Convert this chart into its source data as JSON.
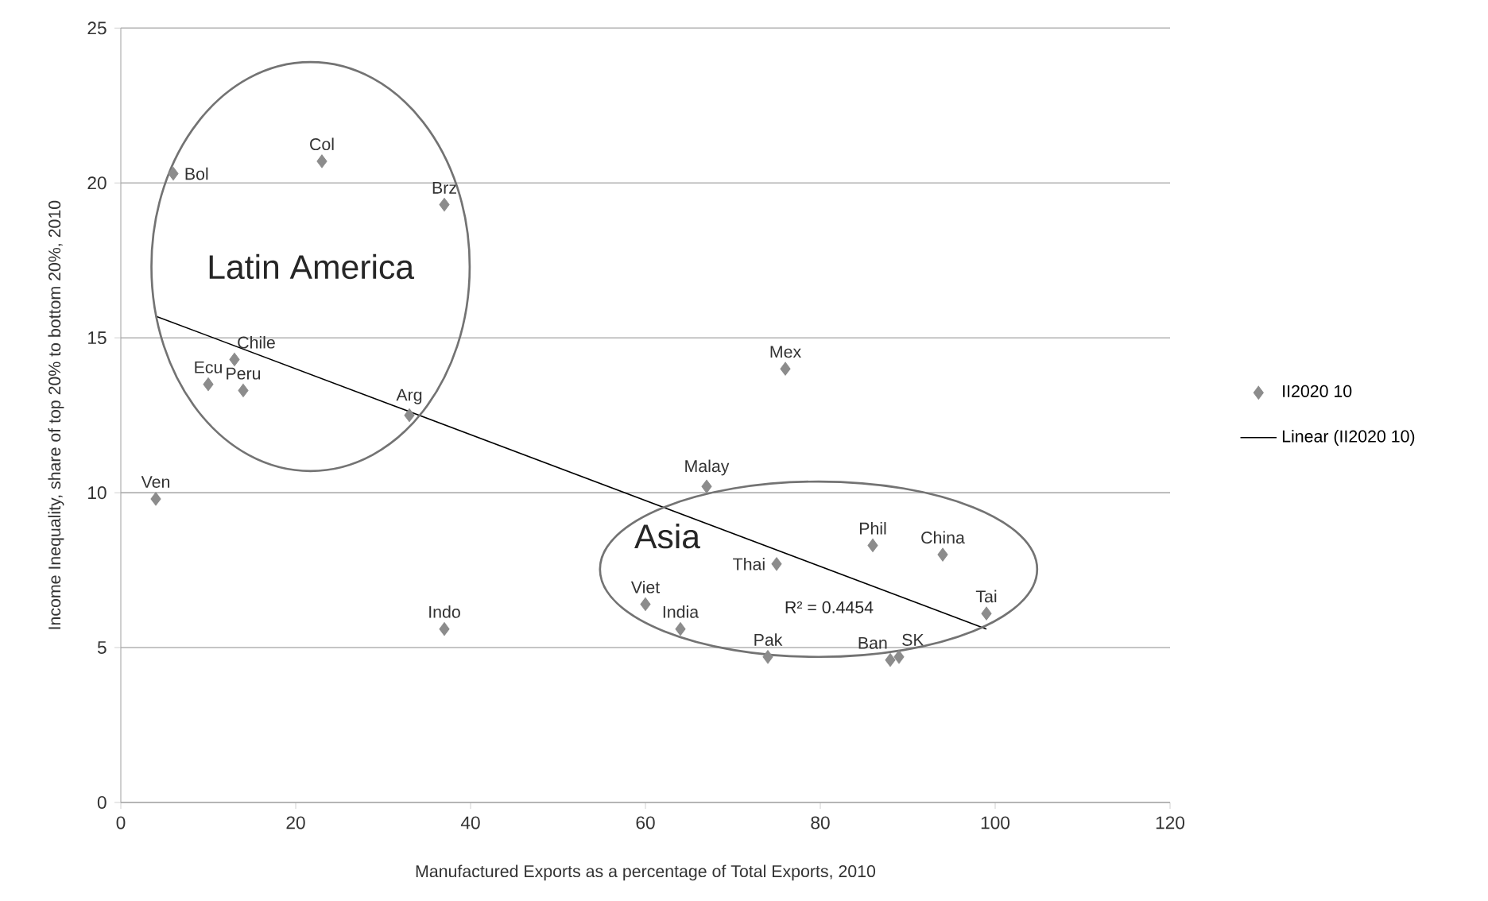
{
  "chart_data": {
    "type": "scatter",
    "xlabel": "Manufactured Exports as a percentage of Total Exports, 2010",
    "ylabel": "Income Inequality, share of top 20% to bottom 20%, 2010",
    "xlim": [
      0,
      120
    ],
    "ylim": [
      0,
      25
    ],
    "xticks": [
      0,
      20,
      40,
      60,
      80,
      100,
      120
    ],
    "yticks": [
      0,
      5,
      10,
      15,
      20,
      25
    ],
    "grid": "y",
    "legend": "right",
    "series": [
      {
        "name": "II2020 10",
        "color": "#8c8c8c",
        "marker": "diamond",
        "x": [
          6,
          23,
          37,
          13,
          10,
          14,
          33,
          4,
          37,
          76,
          67,
          75,
          86,
          94,
          99,
          60,
          64,
          74,
          88,
          89
        ],
        "values": [
          20.3,
          20.7,
          19.3,
          14.3,
          13.5,
          13.3,
          12.5,
          9.8,
          5.6,
          14.0,
          10.2,
          7.7,
          8.3,
          8.0,
          6.1,
          6.4,
          5.6,
          4.7,
          4.6,
          4.7
        ],
        "value_labels": [
          "Bol",
          "Col",
          "Brz",
          "Chile",
          "Ecu",
          "Peru",
          "Arg",
          "Ven",
          "Indo",
          "Mex",
          "Malay",
          "Thai",
          "Phil",
          "China",
          "Tai",
          "Viet",
          "India",
          "Pak",
          "Ban",
          "SK"
        ]
      },
      {
        "type": "line",
        "name": "Linear (II2020 10)",
        "color": "#000000",
        "marker": "none",
        "x": [
          4,
          99
        ],
        "values": [
          15.7,
          5.6
        ]
      }
    ],
    "annotations": [
      "Latin America",
      "Asia",
      "R² = 0.4454"
    ]
  }
}
